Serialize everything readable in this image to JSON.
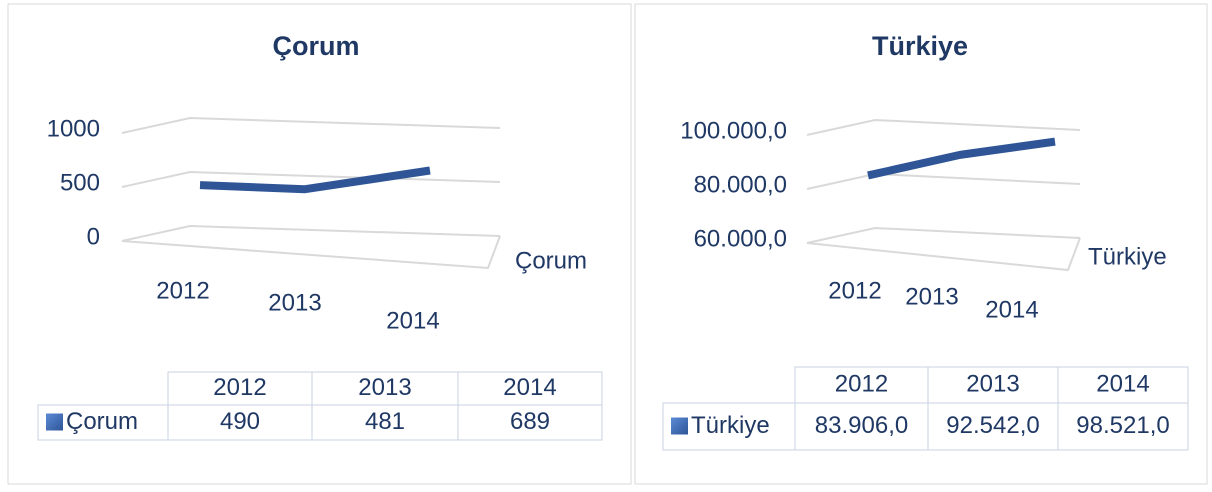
{
  "chart_data": [
    {
      "type": "line",
      "title": "Çorum",
      "categories": [
        "2012",
        "2013",
        "2014"
      ],
      "series": [
        {
          "name": "Çorum",
          "color": "#2f5597",
          "values": [
            490,
            481,
            689
          ]
        }
      ],
      "ylim": [
        0,
        1000
      ],
      "yticks": [
        0,
        500,
        1000
      ],
      "grid": true
    },
    {
      "type": "line",
      "title": "Türkiye",
      "categories": [
        "2012",
        "2013",
        "2014"
      ],
      "series": [
        {
          "name": "Türkiye",
          "color": "#2f5597",
          "values": [
            83906,
            92542,
            98521
          ],
          "value_labels": [
            "83.906,0",
            "92.542,0",
            "98.521,0"
          ]
        }
      ],
      "ylim": [
        60000,
        100000
      ],
      "yticks": [
        {
          "value": 60000,
          "label": "60.000,0"
        },
        {
          "value": 80000,
          "label": "80.000,0"
        },
        {
          "value": 100000,
          "label": "100.000,0"
        }
      ],
      "grid": true
    }
  ]
}
